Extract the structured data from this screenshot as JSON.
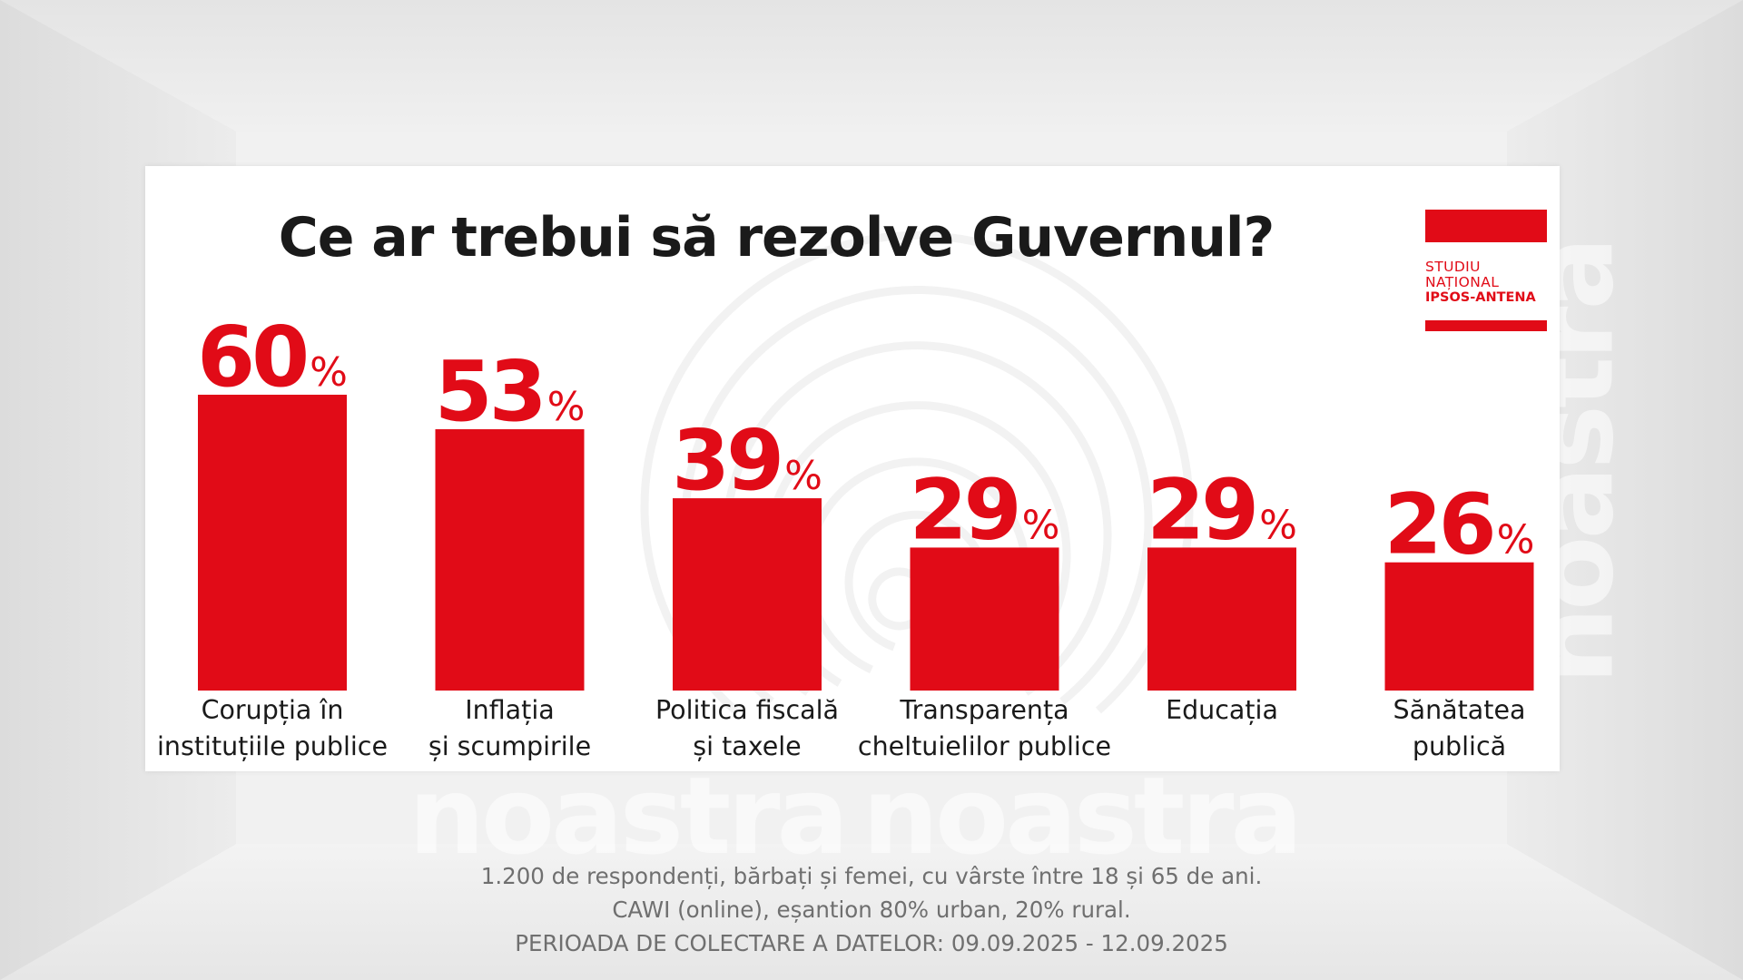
{
  "watermark": {
    "text": "noastra"
  },
  "logo": {
    "line1": "STUDIU",
    "line2": "NAȚIONAL",
    "line3": "IPSOS-ANTENA"
  },
  "colors": {
    "bar": "#e10b17",
    "value_text": "#e10b17",
    "title_text": "#1a1a1a"
  },
  "chart_data": {
    "type": "bar",
    "title": "Ce ar trebui să rezolve Guvernul?",
    "xlabel": "",
    "ylabel": "",
    "unit": "%",
    "categories": [
      "Corupția în\ninstituțiile publice",
      "Inflația\nși scumpirile",
      "Politica fiscală\nși taxele",
      "Transparența\ncheltuielilor publice",
      "Educația",
      "Sănătatea\npublică"
    ],
    "values": [
      60,
      53,
      39,
      29,
      29,
      26
    ],
    "ylim": [
      0,
      60
    ],
    "grid": false,
    "legend": "none"
  },
  "notes": [
    "1.200 de respondenți, bărbați și femei, cu vârste între 18 și 65 de ani.",
    "CAWI (online), eșantion 80% urban, 20% rural.",
    "PERIOADA DE COLECTARE A DATELOR: 09.09.2025 - 12.09.2025"
  ]
}
